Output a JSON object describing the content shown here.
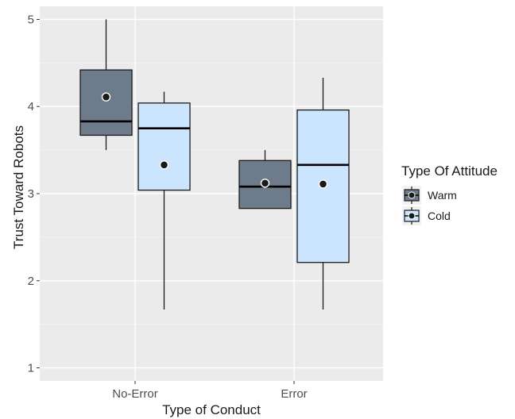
{
  "chart_data": {
    "type": "box",
    "xlabel": "Type of Conduct",
    "ylabel": "Trust Toward Robots",
    "ylim": [
      0.85,
      5.15
    ],
    "yticks": [
      "1",
      "2",
      "3",
      "4",
      "5"
    ],
    "categories": [
      "No-Error",
      "Error"
    ],
    "grid": true,
    "legend": {
      "title": "Type Of Attitude",
      "placement": "right"
    },
    "series": [
      {
        "name": "Warm",
        "color": "#6e7b8b",
        "boxes": [
          {
            "category": "No-Error",
            "min": 3.5,
            "q1": 3.67,
            "median": 3.83,
            "q3": 4.42,
            "max": 5.0,
            "mean": 4.11
          },
          {
            "category": "Error",
            "min": 2.83,
            "q1": 2.83,
            "median": 3.08,
            "q3": 3.38,
            "max": 3.5,
            "mean": 3.12
          }
        ]
      },
      {
        "name": "Cold",
        "color": "#cce5ff",
        "boxes": [
          {
            "category": "No-Error",
            "min": 1.67,
            "q1": 3.04,
            "median": 3.75,
            "q3": 4.04,
            "max": 4.17,
            "mean": 3.33
          },
          {
            "category": "Error",
            "min": 1.67,
            "q1": 2.21,
            "median": 3.33,
            "q3": 3.96,
            "max": 4.33,
            "mean": 3.11
          }
        ]
      }
    ]
  }
}
